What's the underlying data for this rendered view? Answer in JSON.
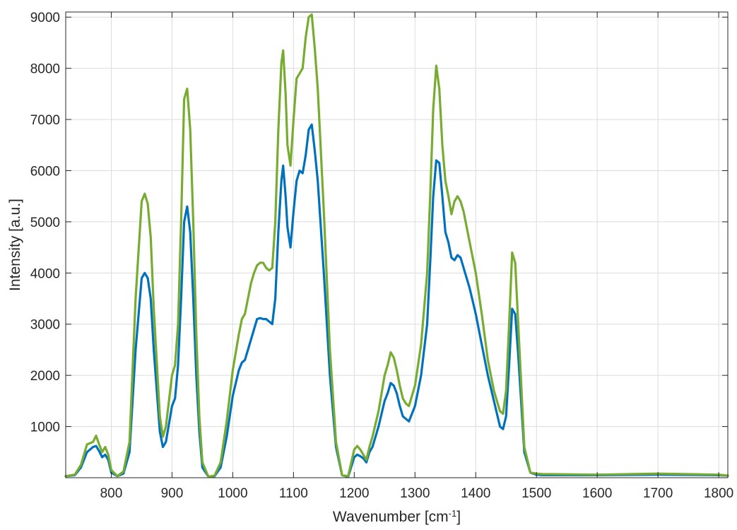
{
  "chart_data": {
    "type": "line",
    "xlabel_main": "Wavenumber [cm",
    "xlabel_sup": "-1",
    "xlabel_end": "]",
    "ylabel": "Intensity [a.u.]",
    "xlim": [
      725,
      1815
    ],
    "ylim": [
      0,
      9100
    ],
    "xticks": [
      800,
      900,
      1000,
      1100,
      1200,
      1300,
      1400,
      1500,
      1600,
      1700,
      1800
    ],
    "yticks": [
      1000,
      2000,
      3000,
      4000,
      5000,
      6000,
      7000,
      8000,
      9000
    ],
    "grid": true,
    "series": [
      {
        "color": "#0072bd",
        "x": [
          725,
          740,
          750,
          760,
          770,
          775,
          780,
          785,
          790,
          795,
          800,
          810,
          820,
          830,
          840,
          850,
          855,
          860,
          865,
          870,
          880,
          885,
          890,
          900,
          905,
          910,
          915,
          920,
          925,
          930,
          935,
          940,
          945,
          950,
          960,
          970,
          980,
          990,
          1000,
          1010,
          1015,
          1020,
          1025,
          1030,
          1035,
          1040,
          1045,
          1050,
          1055,
          1060,
          1065,
          1070,
          1075,
          1080,
          1083,
          1087,
          1090,
          1095,
          1100,
          1105,
          1110,
          1115,
          1120,
          1125,
          1130,
          1135,
          1140,
          1150,
          1160,
          1170,
          1180,
          1190,
          1200,
          1205,
          1210,
          1215,
          1220,
          1225,
          1230,
          1240,
          1250,
          1255,
          1260,
          1265,
          1270,
          1275,
          1280,
          1285,
          1290,
          1300,
          1310,
          1320,
          1325,
          1330,
          1335,
          1340,
          1345,
          1350,
          1355,
          1360,
          1365,
          1370,
          1375,
          1380,
          1385,
          1390,
          1400,
          1410,
          1420,
          1430,
          1440,
          1445,
          1450,
          1455,
          1460,
          1465,
          1470,
          1480,
          1490,
          1500,
          1510,
          1600,
          1700,
          1800,
          1815
        ],
        "y": [
          30,
          50,
          200,
          500,
          600,
          620,
          520,
          400,
          450,
          350,
          100,
          30,
          80,
          500,
          2500,
          3900,
          4000,
          3900,
          3500,
          2500,
          900,
          600,
          700,
          1400,
          1550,
          2200,
          3500,
          5000,
          5300,
          4800,
          3500,
          2000,
          900,
          200,
          20,
          30,
          200,
          800,
          1600,
          2100,
          2250,
          2300,
          2500,
          2700,
          2900,
          3100,
          3120,
          3100,
          3100,
          3050,
          3000,
          3500,
          4800,
          5800,
          6100,
          5500,
          4900,
          4500,
          5200,
          5800,
          6000,
          5950,
          6300,
          6800,
          6900,
          6400,
          5800,
          4000,
          2000,
          600,
          50,
          20,
          400,
          450,
          420,
          380,
          300,
          500,
          600,
          1000,
          1500,
          1650,
          1850,
          1800,
          1650,
          1400,
          1200,
          1150,
          1100,
          1400,
          2000,
          3000,
          4200,
          5500,
          6200,
          6150,
          5500,
          4800,
          4600,
          4300,
          4250,
          4350,
          4300,
          4100,
          3900,
          3700,
          3200,
          2600,
          2000,
          1500,
          1000,
          950,
          1200,
          2200,
          3300,
          3200,
          2400,
          500,
          100,
          60,
          50,
          50,
          60,
          50,
          40
        ]
      },
      {
        "color": "#77ac30",
        "x": [
          725,
          740,
          750,
          760,
          770,
          775,
          780,
          785,
          790,
          795,
          800,
          810,
          820,
          830,
          840,
          850,
          855,
          860,
          865,
          870,
          880,
          885,
          890,
          900,
          905,
          910,
          915,
          920,
          925,
          930,
          935,
          940,
          945,
          950,
          960,
          970,
          980,
          990,
          1000,
          1010,
          1015,
          1020,
          1025,
          1030,
          1035,
          1040,
          1045,
          1050,
          1055,
          1060,
          1065,
          1070,
          1075,
          1080,
          1083,
          1087,
          1090,
          1095,
          1100,
          1105,
          1110,
          1115,
          1120,
          1125,
          1130,
          1135,
          1140,
          1150,
          1160,
          1170,
          1180,
          1190,
          1200,
          1205,
          1210,
          1215,
          1220,
          1225,
          1230,
          1240,
          1250,
          1255,
          1260,
          1265,
          1270,
          1275,
          1280,
          1285,
          1290,
          1300,
          1310,
          1320,
          1325,
          1330,
          1335,
          1340,
          1345,
          1350,
          1355,
          1360,
          1365,
          1370,
          1375,
          1380,
          1385,
          1390,
          1400,
          1410,
          1420,
          1430,
          1440,
          1445,
          1450,
          1455,
          1460,
          1465,
          1470,
          1480,
          1490,
          1500,
          1510,
          1600,
          1700,
          1800,
          1815
        ],
        "y": [
          30,
          60,
          250,
          650,
          700,
          820,
          650,
          500,
          600,
          450,
          150,
          30,
          120,
          700,
          3500,
          5400,
          5550,
          5350,
          4700,
          3300,
          1200,
          800,
          1000,
          2000,
          2200,
          3000,
          5000,
          7400,
          7600,
          6800,
          5000,
          2800,
          1200,
          300,
          20,
          40,
          300,
          1100,
          2100,
          2800,
          3100,
          3200,
          3500,
          3800,
          4000,
          4150,
          4200,
          4200,
          4100,
          4050,
          4100,
          5000,
          6800,
          8100,
          8350,
          7500,
          6500,
          6100,
          7000,
          7800,
          7900,
          8000,
          8600,
          9000,
          9050,
          8400,
          7600,
          5200,
          2500,
          700,
          50,
          30,
          550,
          620,
          550,
          450,
          350,
          600,
          800,
          1300,
          2000,
          2200,
          2450,
          2350,
          2100,
          1800,
          1550,
          1450,
          1400,
          1800,
          2600,
          4000,
          5500,
          7200,
          8050,
          7600,
          6500,
          5800,
          5500,
          5150,
          5400,
          5500,
          5400,
          5200,
          4900,
          4600,
          4000,
          3200,
          2300,
          1700,
          1300,
          1250,
          1700,
          3000,
          4400,
          4200,
          3000,
          600,
          100,
          80,
          70,
          60,
          80,
          60,
          40
        ]
      }
    ]
  }
}
